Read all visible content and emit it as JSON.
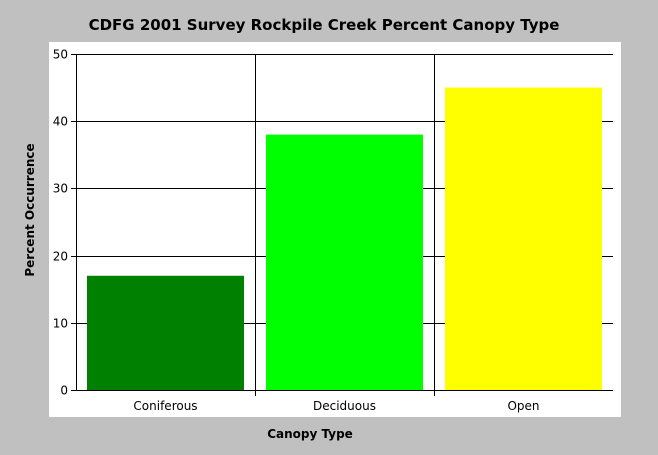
{
  "chart_data": {
    "type": "bar",
    "title": "CDFG 2001 Survey Rockpile Creek Percent Canopy Type",
    "xlabel": "Canopy Type",
    "ylabel": "Percent Occurrence",
    "categories": [
      "Coniferous",
      "Deciduous",
      "Open"
    ],
    "values": [
      17,
      38,
      45
    ],
    "bar_colors": [
      "#008000",
      "#00ff00",
      "#ffff00"
    ],
    "ylim": [
      0,
      50
    ],
    "yticks": [
      0,
      10,
      20,
      30,
      40,
      50
    ],
    "grid": true,
    "legend": "none"
  }
}
